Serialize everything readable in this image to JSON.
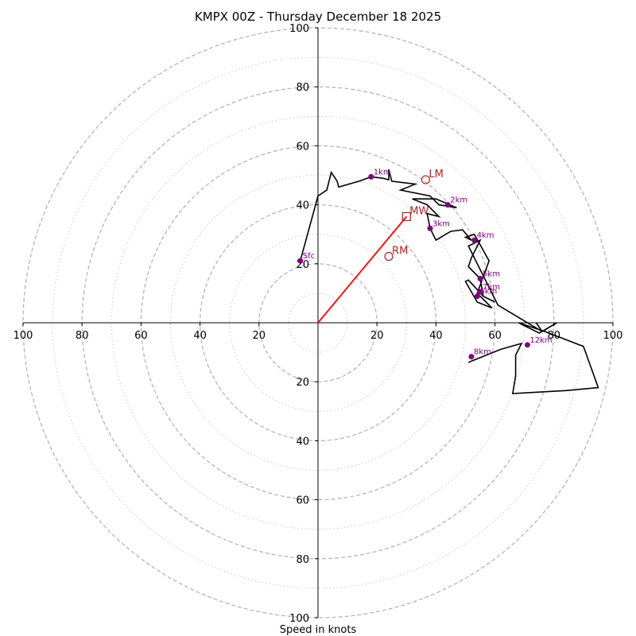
{
  "chart_data": {
    "type": "line",
    "title": "KMPX 00Z - Thursday December 18 2025",
    "xlabel": "Speed in knots",
    "range": [
      -100,
      100
    ],
    "ring_major": [
      20,
      40,
      60,
      80,
      100
    ],
    "ring_minor": [
      10,
      30,
      50,
      70,
      90
    ],
    "x_tick_labels": [
      "100",
      "80",
      "60",
      "40",
      "20",
      "20",
      "40",
      "60",
      "80",
      "100"
    ],
    "x_tick_values": [
      -100,
      -80,
      -60,
      -40,
      -20,
      20,
      40,
      60,
      80,
      100
    ],
    "y_tick_labels": [
      "100",
      "80",
      "60",
      "40",
      "20",
      "20",
      "40",
      "60",
      "80",
      "100"
    ],
    "y_tick_values": [
      100,
      80,
      60,
      40,
      20,
      -20,
      -40,
      -60,
      -80,
      -100
    ],
    "colors": {
      "trace": "#000000",
      "height_marker": "#800080",
      "motion": "#b22222",
      "mean_wind_vector": "#ff0000",
      "major_ring": "#b0b0b0",
      "minor_ring": "#c8c8c8"
    },
    "trace": {
      "u": [
        -6,
        0,
        3,
        4.5,
        6.5,
        7,
        14,
        18,
        22,
        24,
        24,
        25,
        33,
        28,
        38,
        41,
        47,
        40,
        32,
        37,
        41,
        37,
        38,
        40,
        45,
        49,
        52,
        50,
        53,
        58,
        54,
        59,
        54,
        50,
        51,
        56,
        60,
        56,
        55,
        51,
        52,
        55,
        51,
        61,
        76,
        74,
        76,
        81,
        75,
        68,
        77,
        90,
        95,
        84,
        66,
        67,
        67,
        69,
        62,
        52,
        51
      ],
      "v": [
        21,
        43,
        45,
        51,
        48,
        46,
        48,
        49.5,
        49,
        48.5,
        52,
        48,
        47,
        45,
        43,
        40,
        39,
        42,
        42,
        40,
        36,
        37,
        32,
        28,
        31,
        31.5,
        28,
        29,
        30,
        21,
        10,
        5,
        7,
        14,
        14.5,
        9,
        7,
        9,
        15,
        19,
        22,
        28,
        26,
        6,
        -3,
        0,
        -3,
        0,
        -3.5,
        0,
        -3,
        -8,
        -22,
        -23,
        -24,
        -18,
        -11,
        -7,
        -9,
        -13,
        -13.5
      ]
    },
    "height_markers": [
      {
        "label": "Sfc",
        "u": -6,
        "v": 21
      },
      {
        "label": "1km",
        "u": 18,
        "v": 49.5
      },
      {
        "label": "2km",
        "u": 44,
        "v": 40
      },
      {
        "label": "3km",
        "u": 38,
        "v": 32
      },
      {
        "label": "4km",
        "u": 53,
        "v": 28
      },
      {
        "label": "5km",
        "u": 55,
        "v": 15
      },
      {
        "label": "6km",
        "u": 54,
        "v": 9
      },
      {
        "label": "7km",
        "u": 55,
        "v": 10.5
      },
      {
        "label": "8km",
        "u": 52,
        "v": -11.5
      },
      {
        "label": "12km",
        "u": 71,
        "v": -7.5
      }
    ],
    "storm_motion": [
      {
        "label": "LM",
        "u": 36.5,
        "v": 48.5,
        "marker": "circle"
      },
      {
        "label": "MW",
        "u": 30,
        "v": 36,
        "marker": "square"
      },
      {
        "label": "RM",
        "u": 24,
        "v": 22.5,
        "marker": "circle"
      }
    ],
    "mean_wind_vector": {
      "from": [
        0,
        0
      ],
      "to": [
        30,
        36
      ]
    }
  }
}
